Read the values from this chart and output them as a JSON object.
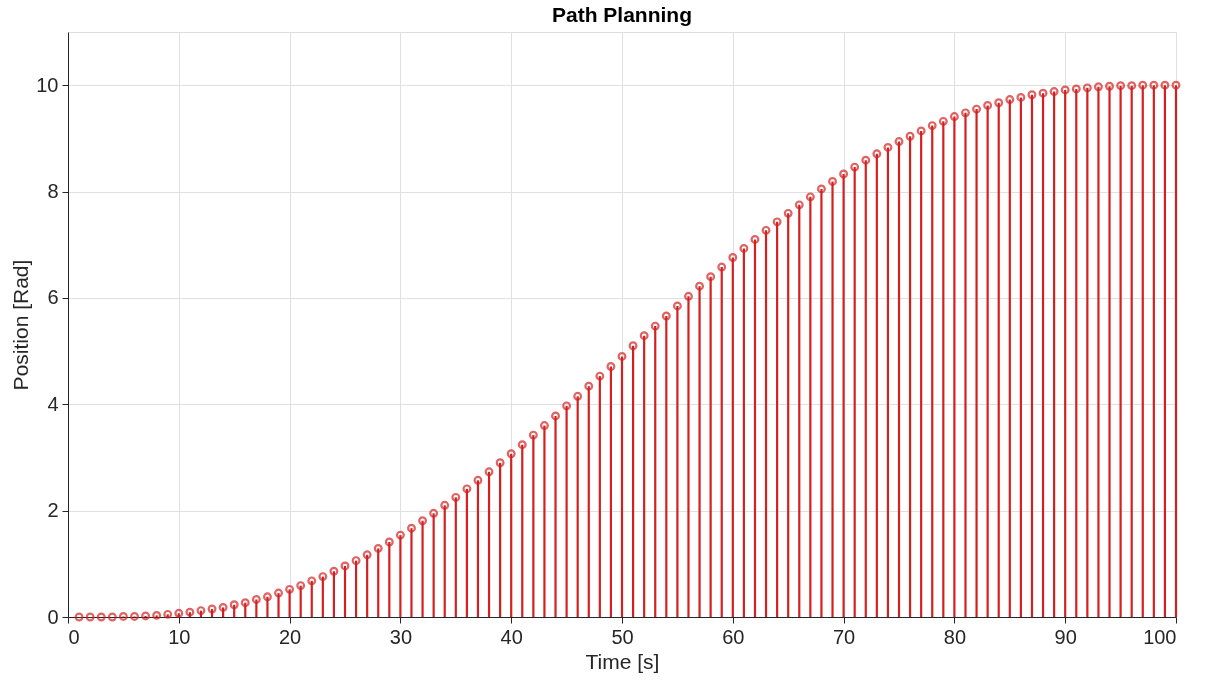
{
  "chart_data": {
    "type": "lollipop",
    "title": "Path Planning",
    "xlabel": "Time [s]",
    "ylabel": "Position [Rad]",
    "x": [
      1,
      2,
      3,
      4,
      5,
      6,
      7,
      8,
      9,
      10,
      11,
      12,
      13,
      14,
      15,
      16,
      17,
      18,
      19,
      20,
      21,
      22,
      23,
      24,
      25,
      26,
      27,
      28,
      29,
      30,
      31,
      32,
      33,
      34,
      35,
      36,
      37,
      38,
      39,
      40,
      41,
      42,
      43,
      44,
      45,
      46,
      47,
      48,
      49,
      50,
      51,
      52,
      53,
      54,
      55,
      56,
      57,
      58,
      59,
      60,
      61,
      62,
      63,
      64,
      65,
      66,
      67,
      68,
      69,
      70,
      71,
      72,
      73,
      74,
      75,
      76,
      77,
      78,
      79,
      80,
      81,
      82,
      83,
      84,
      85,
      86,
      87,
      88,
      89,
      90,
      91,
      92,
      93,
      94,
      95,
      96,
      97,
      98,
      99,
      100
    ],
    "series": [
      {
        "color": "#d42020",
        "values": [
          0,
          0,
          0,
          0,
          0.01,
          0.01,
          0.02,
          0.03,
          0.05,
          0.07,
          0.09,
          0.12,
          0.15,
          0.18,
          0.23,
          0.27,
          0.33,
          0.38,
          0.45,
          0.52,
          0.59,
          0.68,
          0.76,
          0.86,
          0.96,
          1.06,
          1.17,
          1.29,
          1.41,
          1.54,
          1.67,
          1.81,
          1.95,
          2.1,
          2.25,
          2.41,
          2.57,
          2.73,
          2.9,
          3.07,
          3.24,
          3.42,
          3.6,
          3.78,
          3.97,
          4.15,
          4.34,
          4.53,
          4.71,
          4.9,
          5.1,
          5.29,
          5.47,
          5.66,
          5.85,
          6.03,
          6.22,
          6.4,
          6.58,
          6.76,
          6.93,
          7.1,
          7.27,
          7.43,
          7.59,
          7.75,
          7.9,
          8.05,
          8.19,
          8.33,
          8.46,
          8.59,
          8.71,
          8.83,
          8.94,
          9.04,
          9.14,
          9.24,
          9.32,
          9.41,
          9.48,
          9.55,
          9.62,
          9.67,
          9.73,
          9.77,
          9.82,
          9.85,
          9.88,
          9.91,
          9.93,
          9.95,
          9.97,
          9.98,
          9.99,
          9.99,
          10,
          10,
          10,
          10
        ]
      }
    ],
    "xlim": [
      0,
      100
    ],
    "xticks": [
      0,
      10,
      20,
      30,
      40,
      50,
      60,
      70,
      80,
      90,
      100
    ],
    "ylim": [
      0,
      11
    ],
    "yticks": [
      0,
      2,
      4,
      6,
      8,
      10
    ],
    "grid": true,
    "marker": "circle"
  }
}
